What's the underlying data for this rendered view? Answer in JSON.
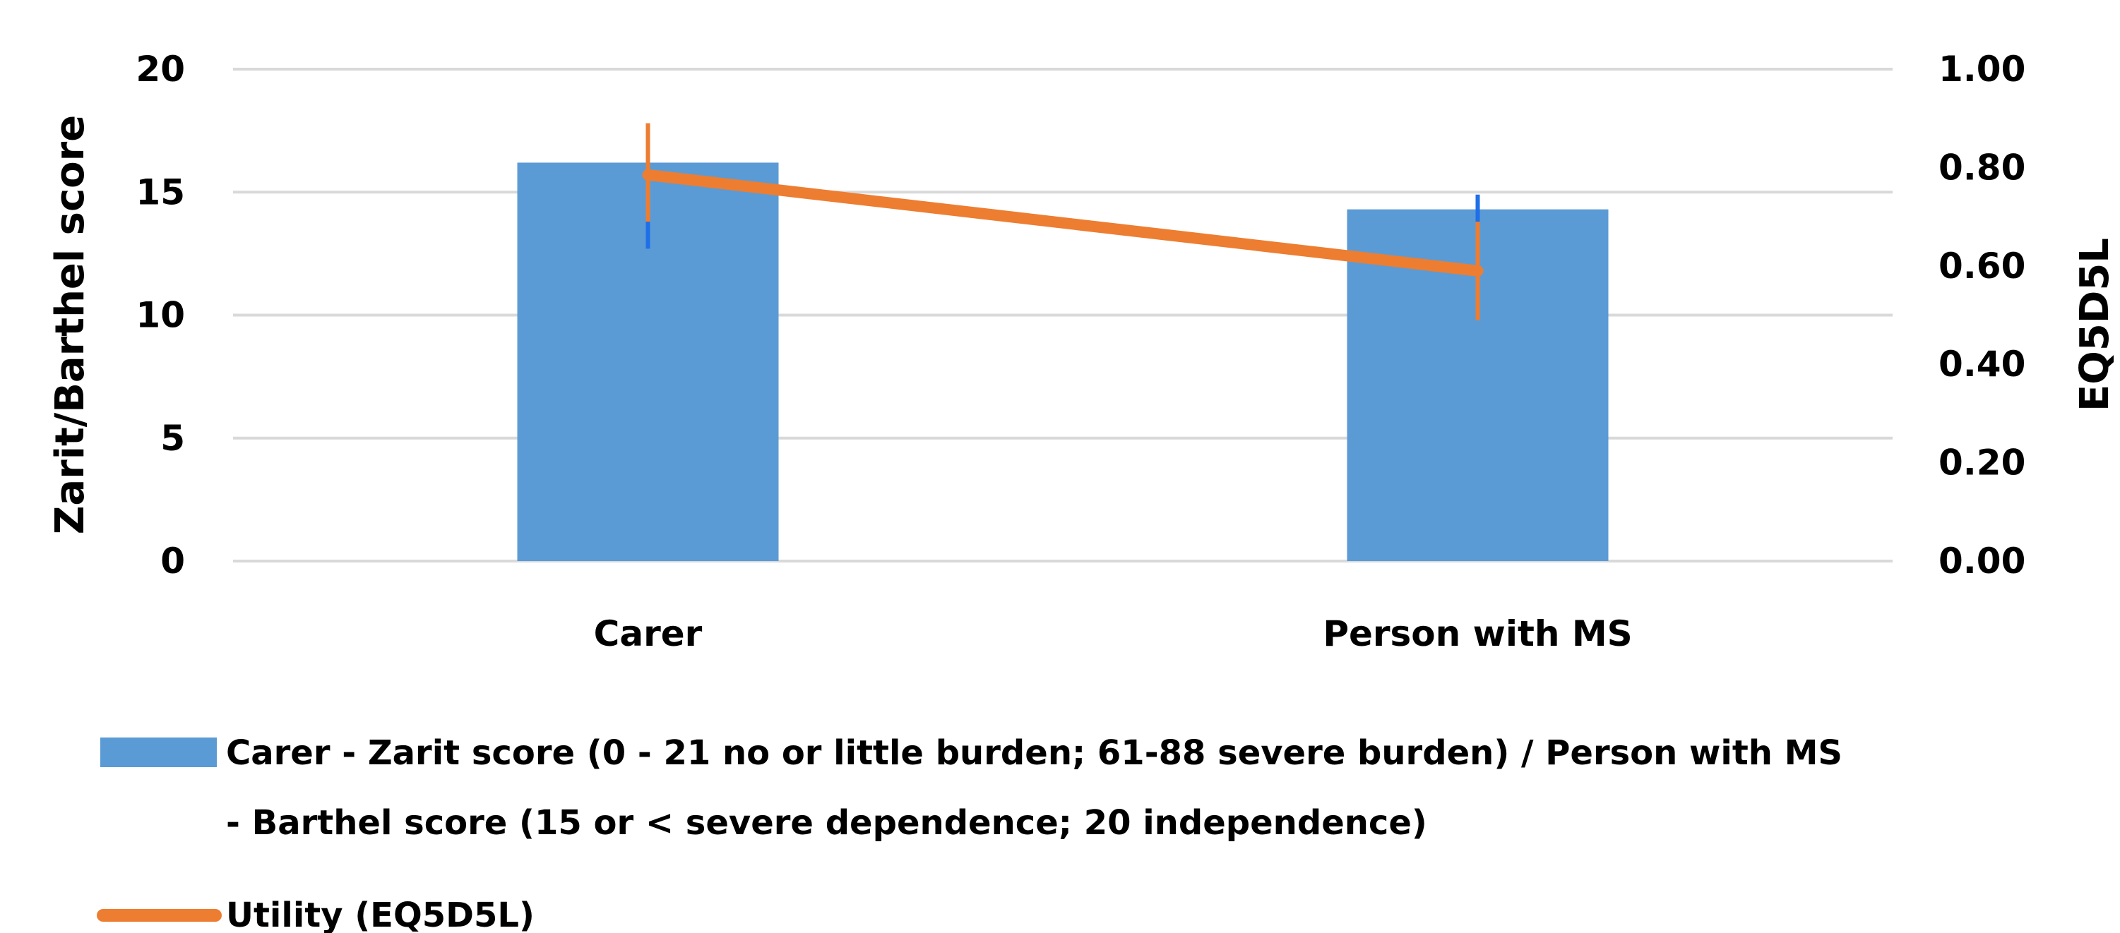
{
  "chart_data": {
    "type": "bar",
    "categories": [
      "Carer",
      "Person with MS"
    ],
    "y_left": {
      "label": "Zarit/Barthel score",
      "range": [
        0,
        20
      ],
      "ticks": [
        "0",
        "5",
        "10",
        "15",
        "20"
      ]
    },
    "y_right": {
      "label": "EQ5D5L",
      "range": [
        0,
        1
      ],
      "ticks": [
        "0.00",
        "0.20",
        "0.40",
        "0.60",
        "0.80",
        "1.00"
      ]
    },
    "grid": true,
    "legend_position": "bottom",
    "series": [
      {
        "name_lines": [
          "Carer - Zarit score (0 - 21 no or little burden; 61-88 severe burden) / Person with MS",
          "- Barthel score (15 or < severe dependence; 20 independence)"
        ],
        "type": "bar",
        "axis": "left",
        "color": "#5B9BD5",
        "error_color": "#1F6FE8",
        "values": [
          16.2,
          14.3
        ],
        "error_low": [
          12.7,
          13.0
        ],
        "error_high": [
          16.2,
          14.9
        ]
      },
      {
        "name": "Utility (EQ5D5L)",
        "type": "line",
        "axis": "right",
        "color": "#ED7D31",
        "values": [
          0.785,
          0.59
        ],
        "error_low": [
          0.69,
          0.49
        ],
        "error_high": [
          0.89,
          0.69
        ]
      }
    ]
  }
}
